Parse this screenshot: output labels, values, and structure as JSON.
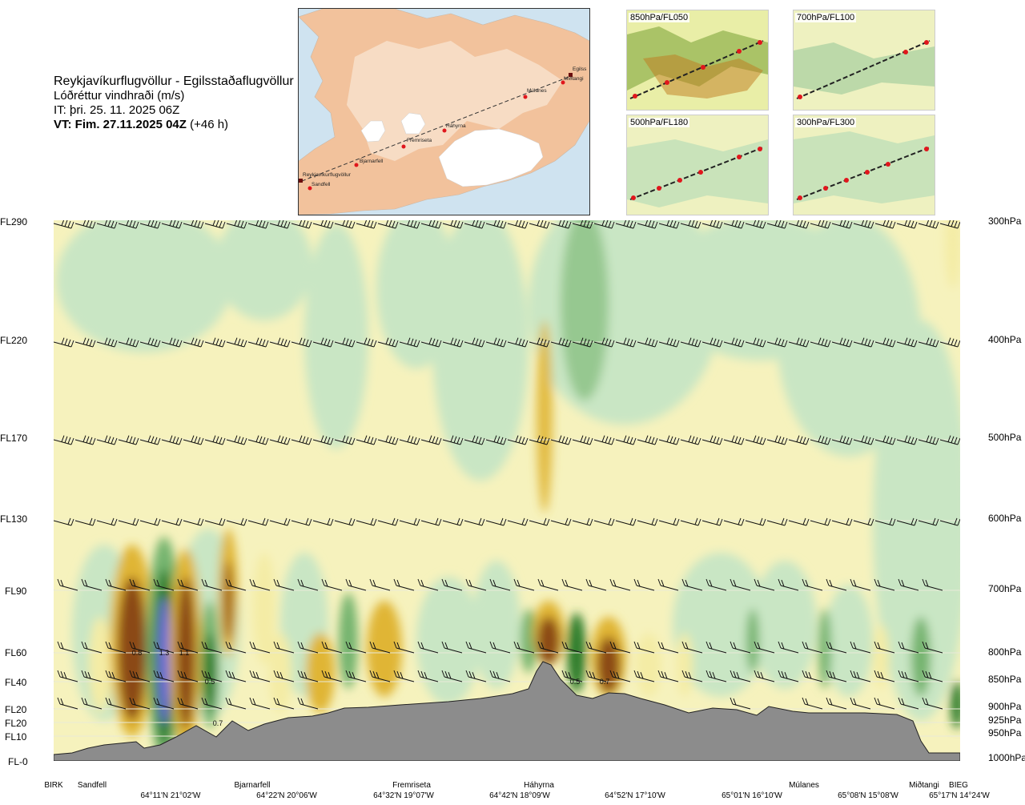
{
  "header": {
    "route": "Reykjavíkurflugvöllur - Egilsstaðaflugvöllur",
    "variable": "Lóðréttur vindhraði (m/s)",
    "issue": "IT: þri. 25. 11. 2025 06Z",
    "valid": "VT: Fim. 27.11.2025 04Z",
    "lead": "(+46 h)"
  },
  "map": {
    "places": [
      "Reykjavíkurflugvöllur",
      "Sandfell",
      "Bjarnarfell",
      "Fremriseta",
      "Háhyrna",
      "Múlanes",
      "Miðtangi",
      "Egilss"
    ]
  },
  "thumbnails": [
    "850hPa/FL050",
    "700hPa/FL100",
    "500hPa/FL180",
    "300hPa/FL300"
  ],
  "flight_levels": [
    "FL290",
    "FL220",
    "FL170",
    "FL130",
    "FL90",
    "FL60",
    "FL40",
    "FL20",
    "FL20",
    "FL10",
    "FL-0"
  ],
  "pressure_levels": [
    "300hPa",
    "400hPa",
    "500hPa",
    "600hPa",
    "700hPa",
    "800hPa",
    "850hPa",
    "900hPa",
    "925hPa",
    "950hPa",
    "1000hPa"
  ],
  "stations": [
    "BIRK",
    "Sandfell",
    "Bjarnarfell",
    "Fremriseta",
    "Háhyrna",
    "Miðtangi",
    "Múlanes",
    "BIEG"
  ],
  "coordinates": [
    "64°11'N 21°02'W",
    "64°22'N 20°06'W",
    "64°32'N 19°07'W",
    "64°42'N 18°09'W",
    "64°52'N 17°10'W",
    "65°01'N 16°10'W",
    "65°08'N 15°08'W",
    "65°17'N 14°24'W"
  ],
  "chart_data": {
    "type": "heatmap",
    "title": "Lóðréttur vindhraði (m/s)",
    "x_categories": [
      "BIRK",
      "Sandfell",
      "Bjarnarfell",
      "Fremriseta",
      "Háhyrna",
      "Múlanes",
      "Miðtangi",
      "BIEG"
    ],
    "y_levels_hpa": [
      300,
      400,
      500,
      600,
      700,
      800,
      850,
      900,
      925,
      950,
      1000
    ],
    "annotations": [
      {
        "near": "Sandfell",
        "level_hpa": 800,
        "value": "0.8"
      },
      {
        "near": "Sandfell",
        "level_hpa": 800,
        "value": "1.3"
      },
      {
        "near": "Sandfell",
        "level_hpa": 800,
        "value": "1.1"
      },
      {
        "near": "Bjarnarfell",
        "level_hpa": 850,
        "value": "0.5"
      },
      {
        "near": "Bjarnarfell",
        "level_hpa": 925,
        "value": "0.7"
      },
      {
        "near": "Háhyrna",
        "level_hpa": 850,
        "value": "0.5"
      },
      {
        "near": "Háhyrna",
        "level_hpa": 850,
        "value": "0.7"
      }
    ],
    "colors": {
      "strong_down": "#2f7d2a",
      "down": "#74b46e",
      "weak_down": "#c9e6c4",
      "neutral": "#f6fae6",
      "weak_up": "#f4eca5",
      "up": "#e0b535",
      "strong_up": "#8b4a16",
      "extreme": "#6a6ad8",
      "terrain": "#8c8c8c"
    }
  }
}
